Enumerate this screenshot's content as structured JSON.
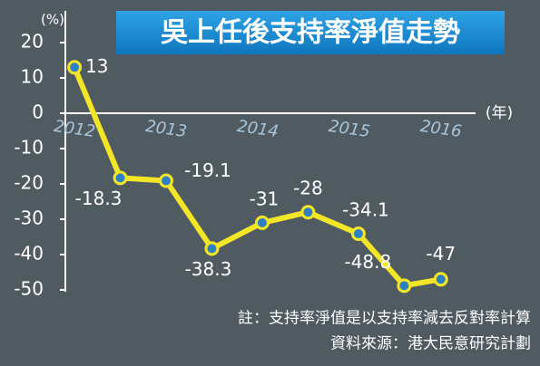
{
  "chart_data": {
    "type": "line",
    "title": "吳上任後支持率淨值走勢",
    "y_unit": "(%)",
    "x_unit": "(年)",
    "x": [
      2012,
      2012.5,
      2013,
      2013.5,
      2014.05,
      2014.55,
      2015.1,
      2015.6,
      2016
    ],
    "series": [
      {
        "color": "#f3e627",
        "values": [
          13,
          -18.3,
          -19.1,
          -38.3,
          -31,
          -28,
          -34.1,
          -48.8,
          -47
        ]
      }
    ],
    "xlim": [
      2011.9,
      2016.3
    ],
    "xticks": [
      2012,
      2013,
      2014,
      2015,
      2016
    ],
    "ylim": [
      -50,
      20
    ],
    "yticks": [
      20,
      10,
      0,
      -10,
      -20,
      -30,
      -40,
      -50
    ],
    "notes": [
      "註：支持率淨值是以支持率減去反對率計算",
      "資料來源：港大民意研究計劃"
    ]
  }
}
